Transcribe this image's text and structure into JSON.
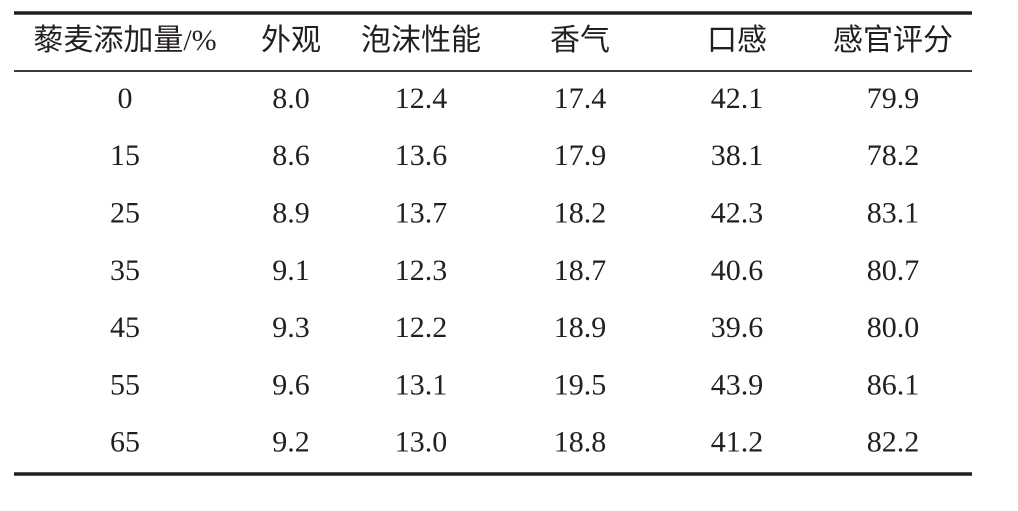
{
  "table": {
    "headers": [
      "藜麦添加量/%",
      "外观",
      "泡沫性能",
      "香气",
      "口感",
      "感官评分"
    ],
    "rows": [
      [
        "0",
        "8.0",
        "12.4",
        "17.4",
        "42.1",
        "79.9"
      ],
      [
        "15",
        "8.6",
        "13.6",
        "17.9",
        "38.1",
        "78.2"
      ],
      [
        "25",
        "8.9",
        "13.7",
        "18.2",
        "42.3",
        "83.1"
      ],
      [
        "35",
        "9.1",
        "12.3",
        "18.7",
        "40.6",
        "80.7"
      ],
      [
        "45",
        "9.3",
        "12.2",
        "18.9",
        "39.6",
        "80.0"
      ],
      [
        "55",
        "9.6",
        "13.1",
        "19.5",
        "43.9",
        "86.1"
      ],
      [
        "65",
        "9.2",
        "13.0",
        "18.8",
        "41.2",
        "82.2"
      ]
    ]
  }
}
